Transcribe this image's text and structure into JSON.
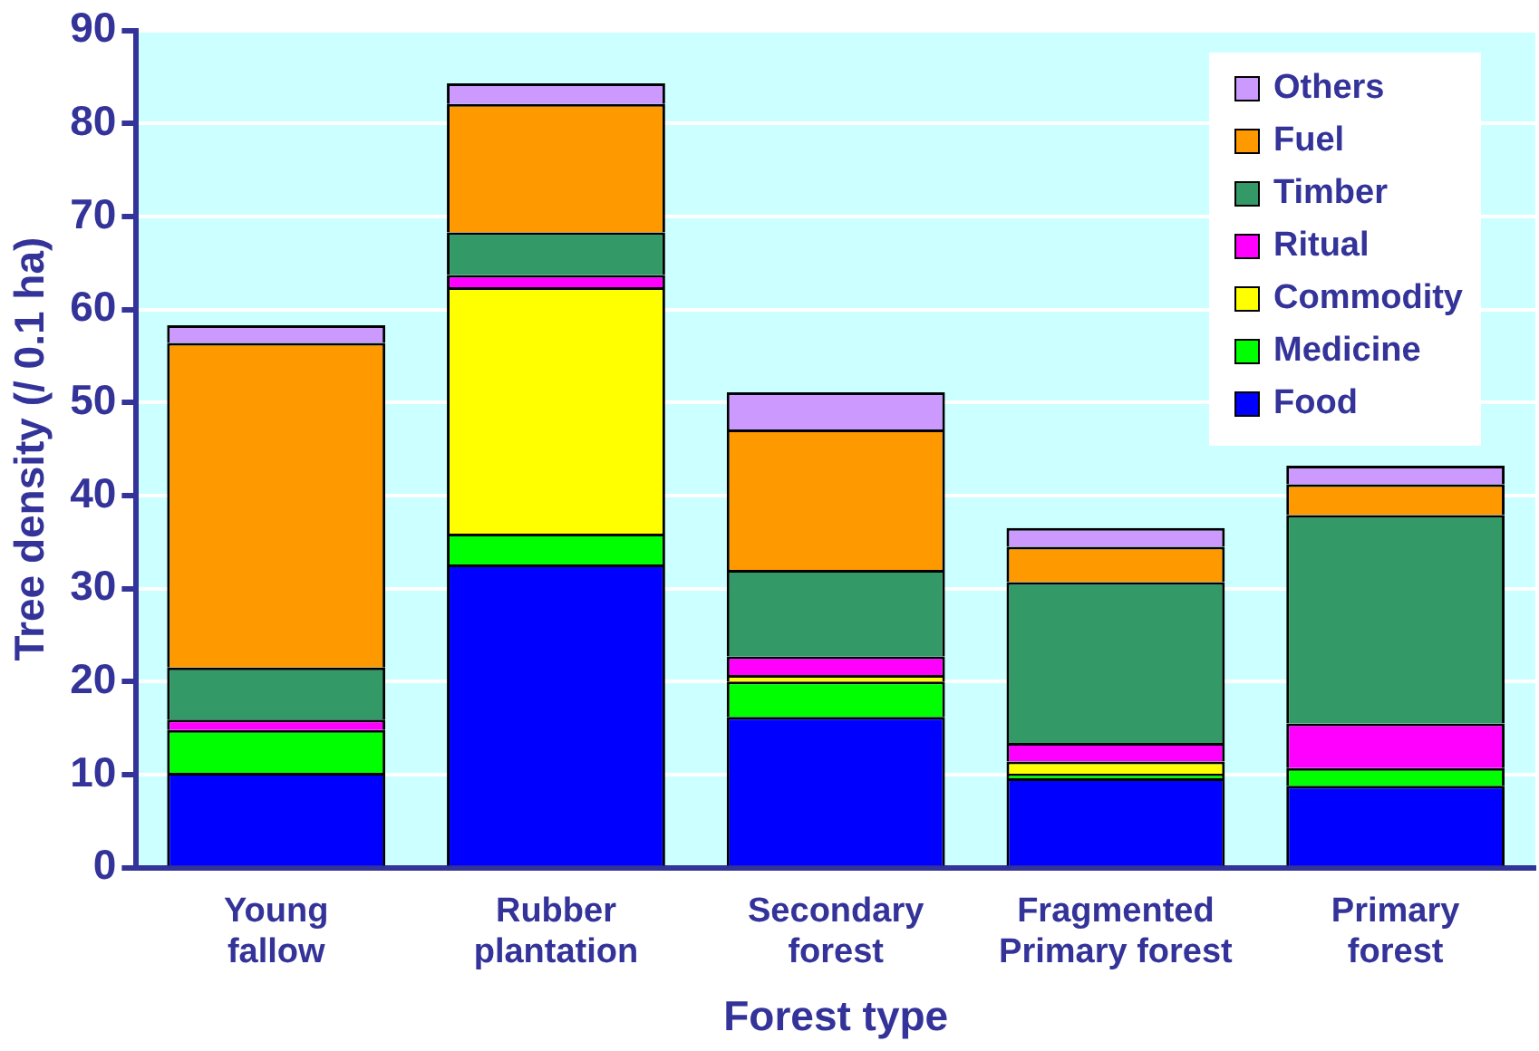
{
  "chart_data": {
    "type": "bar",
    "stacked": true,
    "xlabel": "Forest type",
    "ylabel": "Tree density (/ 0.1 ha)",
    "categories": [
      "Young\nfallow",
      "Rubber\nplantation",
      "Secondary\nforest",
      "Fragmented\nPrimary forest",
      "Primary\nforest"
    ],
    "series": [
      {
        "name": "Food",
        "color": "#0000ff",
        "values": [
          10.2,
          32.6,
          16.2,
          9.6,
          8.8
        ]
      },
      {
        "name": "Medicine",
        "color": "#00ff00",
        "values": [
          4.6,
          3.3,
          3.8,
          0.5,
          1.9
        ]
      },
      {
        "name": "Commodity",
        "color": "#ffff00",
        "values": [
          0,
          26.5,
          0.7,
          1.3,
          0
        ]
      },
      {
        "name": "Ritual",
        "color": "#ff00ff",
        "values": [
          1.1,
          1.3,
          2.0,
          2.0,
          4.8
        ]
      },
      {
        "name": "Timber",
        "color": "#339966",
        "values": [
          5.6,
          4.6,
          9.3,
          17.3,
          22.4
        ]
      },
      {
        "name": "Fuel",
        "color": "#ff9900",
        "values": [
          34.9,
          13.8,
          15.1,
          3.8,
          3.3
        ]
      },
      {
        "name": "Others",
        "color": "#cc99ff",
        "values": [
          1.9,
          2.2,
          4.0,
          2.0,
          2.0
        ]
      }
    ],
    "ylim": [
      0,
      90
    ],
    "yticks": [
      0,
      10,
      20,
      30,
      40,
      50,
      60,
      70,
      80,
      90
    ],
    "grid": "y",
    "legend": "top right"
  }
}
